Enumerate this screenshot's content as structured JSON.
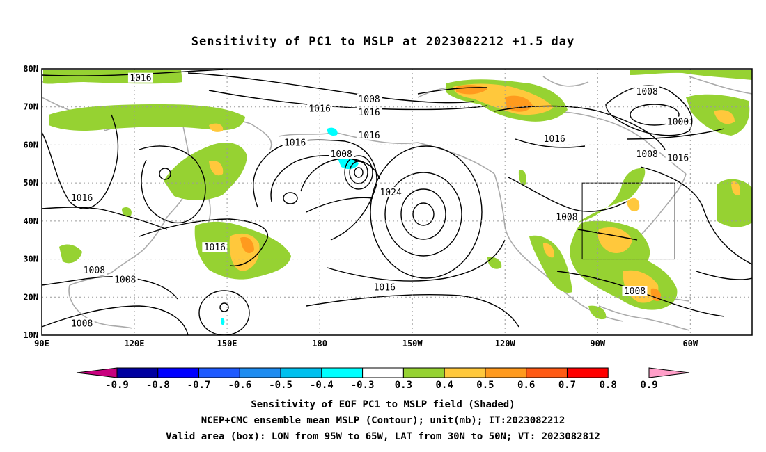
{
  "title": "Sensitivity of PC1 to MSLP at 2023082212 +1.5 day",
  "map": {
    "lon_labels": [
      "90E",
      "120E",
      "150E",
      "180",
      "150W",
      "120W",
      "90W",
      "60W"
    ],
    "lat_labels": [
      "80N",
      "70N",
      "60N",
      "50N",
      "40N",
      "30N",
      "20N",
      "10N"
    ],
    "lon_range": [
      90,
      320
    ],
    "lat_range": [
      10,
      80
    ],
    "valid_box": {
      "lon": [
        265,
        295
      ],
      "lat": [
        30,
        50
      ]
    },
    "contour_labels": [
      {
        "text": "1016",
        "lon": 122,
        "lat": 77.5
      },
      {
        "text": "1008",
        "lon": 196,
        "lat": 72
      },
      {
        "text": "1016",
        "lon": 180,
        "lat": 69.5
      },
      {
        "text": "1016",
        "lon": 196,
        "lat": 68.5
      },
      {
        "text": "1008",
        "lon": 286,
        "lat": 74
      },
      {
        "text": "1000",
        "lon": 296,
        "lat": 66
      },
      {
        "text": "1016",
        "lon": 196,
        "lat": 62.5
      },
      {
        "text": "1016",
        "lon": 172,
        "lat": 60.5
      },
      {
        "text": "1016",
        "lon": 256,
        "lat": 61.5
      },
      {
        "text": "1008",
        "lon": 187,
        "lat": 57.5
      },
      {
        "text": "1008",
        "lon": 286,
        "lat": 57.5
      },
      {
        "text": "1016",
        "lon": 296,
        "lat": 56.5
      },
      {
        "text": "1024",
        "lon": 203,
        "lat": 47.5
      },
      {
        "text": "1016",
        "lon": 103,
        "lat": 46
      },
      {
        "text": "1008",
        "lon": 260,
        "lat": 41
      },
      {
        "text": "1016",
        "lon": 146,
        "lat": 33
      },
      {
        "text": "1008",
        "lon": 107,
        "lat": 27
      },
      {
        "text": "1008",
        "lon": 117,
        "lat": 24.5
      },
      {
        "text": "1016",
        "lon": 201,
        "lat": 22.5
      },
      {
        "text": "1008",
        "lon": 282,
        "lat": 21.5
      },
      {
        "text": "1008",
        "lon": 103,
        "lat": 13
      }
    ]
  },
  "colorbar": {
    "labels": [
      "-0.9",
      "-0.8",
      "-0.7",
      "-0.6",
      "-0.5",
      "-0.4",
      "-0.3",
      "0.3",
      "0.4",
      "0.5",
      "0.6",
      "0.7",
      "0.8",
      "0.9"
    ],
    "colors": [
      "#c8007e",
      "#0000a0",
      "#0000ff",
      "#1e5aff",
      "#1e8cf0",
      "#00c0ee",
      "#00ffff",
      "#ffffff",
      "#96d232",
      "#ffc83c",
      "#ff9a1e",
      "#ff5a14",
      "#ff0000",
      "#ff9ec8"
    ]
  },
  "captions": {
    "line1": "Sensitivity of EOF PC1 to MSLP field (Shaded)",
    "line2": "NCEP+CMC ensemble mean MSLP (Contour); unit(mb); IT:2023082212",
    "line3": "Valid area (box): LON from 95W to 65W, LAT from 30N to 50N; VT: 2023082812"
  }
}
